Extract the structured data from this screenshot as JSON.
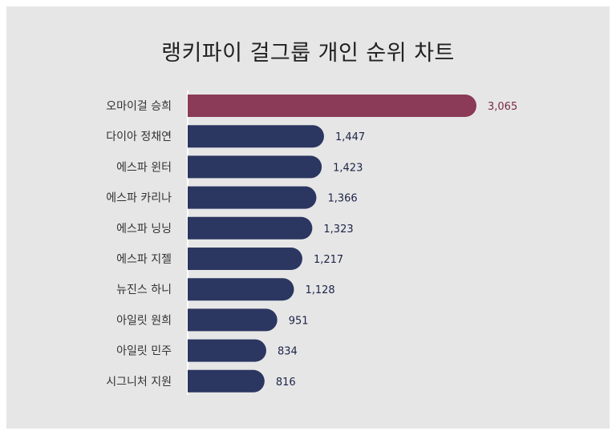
{
  "chart_data": {
    "type": "bar",
    "orientation": "horizontal",
    "title": "랭키파이 걸그룹 개인 순위 차트",
    "categories": [
      "오마이걸 승희",
      "다이아 정채연",
      "에스파 윈터",
      "에스파 카리나",
      "에스파 닝닝",
      "에스파 지젤",
      "뉴진스 하니",
      "아일릿 원희",
      "아일릿 민주",
      "시그니처 지원"
    ],
    "values": [
      3065,
      1447,
      1423,
      1366,
      1323,
      1217,
      1128,
      951,
      834,
      816
    ],
    "value_labels": [
      "3,065",
      "1,447",
      "1,423",
      "1,366",
      "1,323",
      "1,217",
      "1,128",
      "951",
      "834",
      "816"
    ],
    "xlim": [
      0,
      3065
    ],
    "grid": false,
    "colors": {
      "highlight": "#8b3a57",
      "default": "#2b3661",
      "highlight_label": "#7a2a42",
      "default_label": "#1c2347"
    }
  }
}
